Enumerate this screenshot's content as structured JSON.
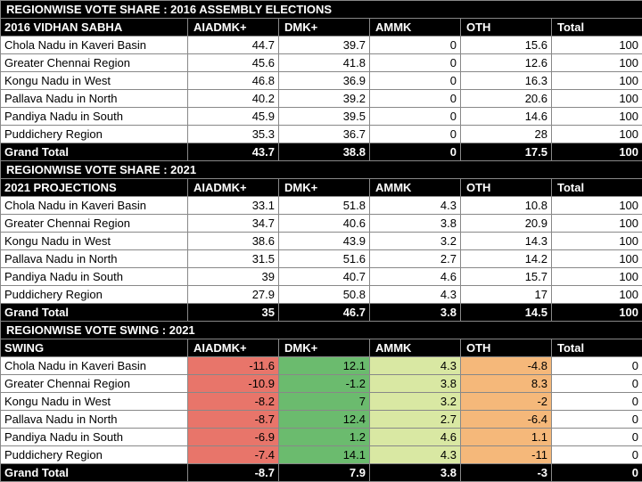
{
  "colors": {
    "swing_red": "#e8756a",
    "swing_green_dark": "#6bbb6e",
    "swing_green_light": "#d9e8a3",
    "swing_orange": "#f5b87a",
    "white": "#ffffff"
  },
  "section1": {
    "title": "REGIONWISE VOTE SHARE : 2016 ASSEMBLY ELECTIONS",
    "header": [
      "2016 VIDHAN SABHA",
      "AIADMK+",
      "DMK+",
      "AMMK",
      "OTH",
      "Total"
    ],
    "rows": [
      [
        "Chola Nadu in Kaveri Basin",
        "44.7",
        "39.7",
        "0",
        "15.6",
        "100"
      ],
      [
        "Greater Chennai Region",
        "45.6",
        "41.8",
        "0",
        "12.6",
        "100"
      ],
      [
        "Kongu Nadu in West",
        "46.8",
        "36.9",
        "0",
        "16.3",
        "100"
      ],
      [
        "Pallava Nadu in North",
        "40.2",
        "39.2",
        "0",
        "20.6",
        "100"
      ],
      [
        "Pandiya Nadu in South",
        "45.9",
        "39.5",
        "0",
        "14.6",
        "100"
      ],
      [
        "Puddichery Region",
        "35.3",
        "36.7",
        "0",
        "28",
        "100"
      ]
    ],
    "total": [
      "Grand Total",
      "43.7",
      "38.8",
      "0",
      "17.5",
      "100"
    ]
  },
  "section2": {
    "title": "REGIONWISE VOTE SHARE : 2021",
    "header": [
      "2021 PROJECTIONS",
      "AIADMK+",
      "DMK+",
      "AMMK",
      "OTH",
      "Total"
    ],
    "rows": [
      [
        "Chola Nadu in Kaveri Basin",
        "33.1",
        "51.8",
        "4.3",
        "10.8",
        "100"
      ],
      [
        "Greater Chennai Region",
        "34.7",
        "40.6",
        "3.8",
        "20.9",
        "100"
      ],
      [
        "Kongu Nadu in West",
        "38.6",
        "43.9",
        "3.2",
        "14.3",
        "100"
      ],
      [
        "Pallava Nadu in North",
        "31.5",
        "51.6",
        "2.7",
        "14.2",
        "100"
      ],
      [
        "Pandiya Nadu in South",
        "39",
        "40.7",
        "4.6",
        "15.7",
        "100"
      ],
      [
        "Puddichery Region",
        "27.9",
        "50.8",
        "4.3",
        "17",
        "100"
      ]
    ],
    "total": [
      "Grand Total",
      "35",
      "46.7",
      "3.8",
      "14.5",
      "100"
    ]
  },
  "section3": {
    "title": "REGIONWISE VOTE SWING : 2021",
    "header": [
      "SWING",
      "AIADMK+",
      "DMK+",
      "AMMK",
      "OTH",
      "Total"
    ],
    "rows": [
      {
        "cells": [
          "Chola Nadu in Kaveri Basin",
          "-11.6",
          "12.1",
          "4.3",
          "-4.8",
          "0"
        ],
        "bg": [
          "white",
          "swing_red",
          "swing_green_dark",
          "swing_green_light",
          "swing_orange",
          "white"
        ]
      },
      {
        "cells": [
          "Greater Chennai Region",
          "-10.9",
          "-1.2",
          "3.8",
          "8.3",
          "0"
        ],
        "bg": [
          "white",
          "swing_red",
          "swing_green_dark",
          "swing_green_light",
          "swing_orange",
          "white"
        ]
      },
      {
        "cells": [
          "Kongu Nadu in West",
          "-8.2",
          "7",
          "3.2",
          "-2",
          "0"
        ],
        "bg": [
          "white",
          "swing_red",
          "swing_green_dark",
          "swing_green_light",
          "swing_orange",
          "white"
        ]
      },
      {
        "cells": [
          "Pallava Nadu in North",
          "-8.7",
          "12.4",
          "2.7",
          "-6.4",
          "0"
        ],
        "bg": [
          "white",
          "swing_red",
          "swing_green_dark",
          "swing_green_light",
          "swing_orange",
          "white"
        ]
      },
      {
        "cells": [
          "Pandiya Nadu in South",
          "-6.9",
          "1.2",
          "4.6",
          "1.1",
          "0"
        ],
        "bg": [
          "white",
          "swing_red",
          "swing_green_dark",
          "swing_green_light",
          "swing_orange",
          "white"
        ]
      },
      {
        "cells": [
          "Puddichery Region",
          "-7.4",
          "14.1",
          "4.3",
          "-11",
          "0"
        ],
        "bg": [
          "white",
          "swing_red",
          "swing_green_dark",
          "swing_green_light",
          "swing_orange",
          "white"
        ]
      }
    ],
    "total": [
      "Grand Total",
      "-8.7",
      "7.9",
      "3.8",
      "-3",
      "0"
    ]
  }
}
